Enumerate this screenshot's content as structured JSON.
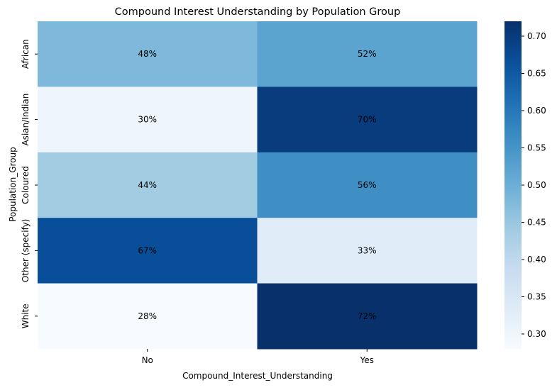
{
  "chart_data": {
    "type": "heatmap",
    "title": "Compound Interest Understanding by Population Group",
    "xlabel": "Compound_Interest_Understanding",
    "ylabel": "Population_Group",
    "x_categories": [
      "No",
      "Yes"
    ],
    "y_categories": [
      "African",
      "Asian/Indian",
      "Coloured",
      "Other (specify)",
      "White"
    ],
    "values": [
      [
        0.48,
        0.52
      ],
      [
        0.3,
        0.7
      ],
      [
        0.44,
        0.56
      ],
      [
        0.67,
        0.33
      ],
      [
        0.28,
        0.72
      ]
    ],
    "cell_labels": [
      [
        "48%",
        "52%"
      ],
      [
        "30%",
        "70%"
      ],
      [
        "44%",
        "56%"
      ],
      [
        "67%",
        "33%"
      ],
      [
        "28%",
        "72%"
      ]
    ],
    "colormap": "Blues",
    "colorbar": {
      "vmin": 0.28,
      "vmax": 0.72,
      "ticks": [
        0.3,
        0.35,
        0.4,
        0.45,
        0.5,
        0.55,
        0.6,
        0.65,
        0.7
      ],
      "tick_labels": [
        "0.30",
        "0.35",
        "0.40",
        "0.45",
        "0.50",
        "0.55",
        "0.60",
        "0.65",
        "0.70"
      ]
    },
    "grid": false
  }
}
